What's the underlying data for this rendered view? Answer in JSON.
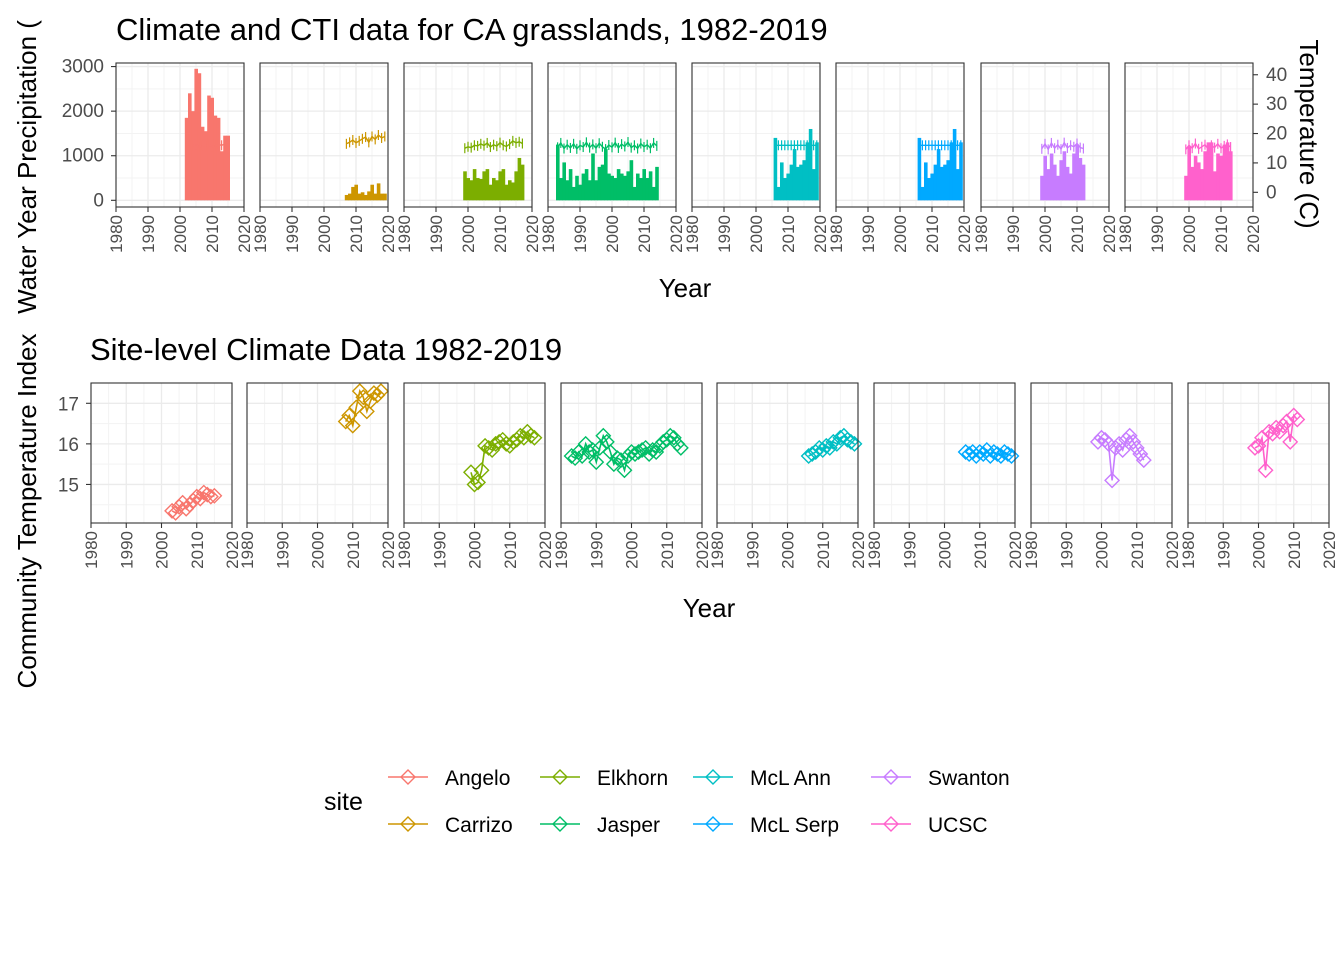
{
  "chart_data": [
    {
      "type": "bar",
      "title": "Climate and CTI data for CA grasslands, 1982-2019",
      "xlabel": "Year",
      "ylabel": "Water Year Precipitation (",
      "y2label": "Temperature (C)",
      "xlim": [
        1980,
        2020
      ],
      "ylim": [
        -150,
        3080
      ],
      "y2lim": [
        -5,
        44
      ],
      "xticks": [
        "1980",
        "1990",
        "2000",
        "2010",
        "2020"
      ],
      "yticks": [
        0,
        1000,
        2000,
        3000
      ],
      "y2ticks": [
        0,
        10,
        20,
        30,
        40
      ],
      "grid": true,
      "facets": [
        {
          "site": "Angelo",
          "color": "#F8766D",
          "x": [
            2002,
            2003,
            2004,
            2005,
            2006,
            2007,
            2008,
            2009,
            2010,
            2011,
            2012,
            2013,
            2014,
            2015
          ],
          "precip": [
            1850,
            2400,
            2000,
            2950,
            2850,
            1650,
            1550,
            2350,
            2300,
            1900,
            1850,
            1100,
            1450,
            1450
          ],
          "temp": [
            15.5,
            16.0,
            15.8,
            16.2,
            15.5,
            15.9,
            15.7,
            16.1,
            15.6,
            15.8,
            16.3,
            16.0,
            16.4,
            16.2
          ]
        },
        {
          "site": "Carrizo",
          "color": "#CD9600",
          "x": [
            2007,
            2008,
            2009,
            2010,
            2011,
            2012,
            2013,
            2014,
            2015,
            2016,
            2017,
            2018,
            2019
          ],
          "precip": [
            120,
            150,
            300,
            350,
            150,
            180,
            120,
            200,
            350,
            150,
            380,
            150,
            150
          ],
          "temp": [
            16.5,
            17.0,
            17.8,
            16.8,
            17.5,
            18.2,
            18.8,
            17.0,
            19.0,
            18.0,
            19.5,
            18.5,
            19.0
          ]
        },
        {
          "site": "Elkhorn",
          "color": "#7CAE00",
          "x": [
            1999,
            2000,
            2001,
            2002,
            2003,
            2004,
            2005,
            2006,
            2007,
            2008,
            2009,
            2010,
            2011,
            2012,
            2013,
            2014,
            2015,
            2016,
            2017
          ],
          "precip": [
            650,
            500,
            450,
            700,
            500,
            480,
            650,
            700,
            350,
            500,
            450,
            650,
            700,
            350,
            450,
            400,
            650,
            950,
            800
          ],
          "temp": [
            15.0,
            15.5,
            15.2,
            16.0,
            15.8,
            16.5,
            15.9,
            16.8,
            15.4,
            16.2,
            15.7,
            16.9,
            16.0,
            15.6,
            16.4,
            17.5,
            16.8,
            17.2,
            16.6
          ]
        },
        {
          "site": "Jasper",
          "color": "#00BE67",
          "x": [
            1983,
            1984,
            1985,
            1986,
            1987,
            1988,
            1989,
            1990,
            1991,
            1992,
            1993,
            1994,
            1995,
            1996,
            1997,
            1998,
            1999,
            2000,
            2001,
            2002,
            2003,
            2004,
            2005,
            2006,
            2007,
            2008,
            2009,
            2010,
            2011,
            2012,
            2013,
            2014
          ],
          "precip": [
            1250,
            500,
            850,
            450,
            700,
            300,
            550,
            350,
            600,
            700,
            450,
            1050,
            450,
            750,
            800,
            1150,
            600,
            550,
            500,
            700,
            600,
            550,
            650,
            900,
            300,
            600,
            500,
            700,
            500,
            650,
            300,
            750
          ],
          "temp": [
            15.3,
            16.8,
            14.9,
            16.2,
            15.1,
            16.5,
            14.8,
            16.0,
            15.4,
            17.0,
            15.2,
            16.3,
            15.0,
            16.7,
            15.5,
            14.7,
            16.1,
            15.3,
            16.9,
            15.1,
            16.4,
            15.6,
            17.1,
            15.2,
            16.0,
            14.9,
            16.6,
            15.4,
            16.2,
            15.0,
            16.8,
            15.8
          ]
        },
        {
          "site": "McL Ann",
          "color": "#00BFC4",
          "x": [
            2006,
            2007,
            2008,
            2009,
            2010,
            2011,
            2012,
            2013,
            2014,
            2015,
            2016,
            2017,
            2018,
            2019
          ],
          "precip": [
            1400,
            300,
            850,
            500,
            600,
            800,
            1150,
            750,
            800,
            900,
            1300,
            1600,
            700,
            1300
          ],
          "temp": [
            16.0,
            16.0,
            16.0,
            16.0,
            16.0,
            16.0,
            16.0,
            16.0,
            16.0,
            16.0,
            16.0,
            16.0,
            16.0,
            16.0
          ]
        },
        {
          "site": "McL Serp",
          "color": "#00A9FF",
          "x": [
            2006,
            2007,
            2008,
            2009,
            2010,
            2011,
            2012,
            2013,
            2014,
            2015,
            2016,
            2017,
            2018,
            2019
          ],
          "precip": [
            1400,
            300,
            850,
            500,
            600,
            800,
            1150,
            750,
            800,
            900,
            1300,
            1600,
            700,
            1300
          ],
          "temp": [
            16.0,
            16.0,
            16.0,
            16.0,
            16.0,
            16.0,
            16.0,
            16.0,
            16.0,
            16.0,
            16.0,
            16.0,
            16.0,
            16.0
          ]
        },
        {
          "site": "Swanton",
          "color": "#C77CFF",
          "x": [
            1999,
            2000,
            2001,
            2002,
            2003,
            2004,
            2005,
            2006,
            2007,
            2008,
            2009,
            2010,
            2011,
            2012
          ],
          "precip": [
            550,
            1000,
            700,
            1050,
            800,
            550,
            900,
            1100,
            750,
            600,
            1050,
            1250,
            950,
            800
          ],
          "temp": [
            14.8,
            16.5,
            14.6,
            16.8,
            15.0,
            16.2,
            14.7,
            16.9,
            15.1,
            16.0,
            15.5,
            16.6,
            15.2,
            14.9
          ]
        },
        {
          "site": "UCSC",
          "color": "#FF61CC",
          "x": [
            1999,
            2000,
            2001,
            2002,
            2003,
            2004,
            2005,
            2006,
            2007,
            2008,
            2009,
            2010,
            2011,
            2012,
            2013
          ],
          "precip": [
            550,
            1200,
            750,
            1000,
            850,
            700,
            1100,
            1300,
            1300,
            650,
            1050,
            1000,
            1250,
            1300,
            1100
          ],
          "temp": [
            14.6,
            16.0,
            15.0,
            16.6,
            14.8,
            15.5,
            16.2,
            14.7,
            16.0,
            15.2,
            16.5,
            15.0,
            15.8,
            16.3,
            15.4
          ]
        }
      ]
    },
    {
      "type": "line",
      "title": "Site-level Climate Data 1982-2019",
      "xlabel": "Year",
      "ylabel": "Community Temperature Index",
      "xlim": [
        1980,
        2020
      ],
      "ylim": [
        14.05,
        17.5
      ],
      "xticks": [
        "1980",
        "1990",
        "2000",
        "2010",
        "2020"
      ],
      "yticks": [
        15,
        16,
        17
      ],
      "grid": true,
      "marker": "open-diamond",
      "series": [
        {
          "name": "Angelo",
          "color": "#F8766D",
          "x": [
            2003,
            2004,
            2005,
            2006,
            2007,
            2008,
            2009,
            2010,
            2011,
            2012,
            2013,
            2014,
            2015
          ],
          "y": [
            14.35,
            14.3,
            14.45,
            14.55,
            14.4,
            14.5,
            14.6,
            14.7,
            14.65,
            14.8,
            14.75,
            14.7,
            14.72
          ]
        },
        {
          "name": "Carrizo",
          "color": "#CD9600",
          "x": [
            2008,
            2009,
            2010,
            2011,
            2012,
            2013,
            2014,
            2015,
            2016,
            2017,
            2018
          ],
          "y": [
            16.55,
            16.7,
            16.45,
            16.9,
            17.3,
            17.15,
            16.8,
            17.05,
            17.25,
            17.2,
            17.3
          ]
        },
        {
          "name": "Elkhorn",
          "color": "#7CAE00",
          "x": [
            1999,
            2000,
            2001,
            2002,
            2003,
            2004,
            2005,
            2006,
            2007,
            2008,
            2009,
            2010,
            2011,
            2012,
            2013,
            2014,
            2015,
            2016,
            2017
          ],
          "y": [
            15.3,
            15.0,
            15.05,
            15.35,
            15.95,
            15.9,
            15.85,
            16.0,
            16.05,
            16.1,
            16.0,
            15.95,
            16.05,
            16.1,
            16.2,
            16.15,
            16.3,
            16.2,
            16.15
          ]
        },
        {
          "name": "Jasper",
          "color": "#00BE67",
          "x": [
            1983,
            1984,
            1985,
            1986,
            1987,
            1988,
            1989,
            1990,
            1991,
            1992,
            1993,
            1994,
            1995,
            1996,
            1997,
            1998,
            1999,
            2000,
            2001,
            2002,
            2003,
            2004,
            2005,
            2006,
            2007,
            2008,
            2009,
            2010,
            2011,
            2012,
            2013,
            2014
          ],
          "y": [
            15.7,
            15.65,
            15.8,
            15.7,
            16.0,
            15.8,
            15.85,
            15.55,
            15.9,
            16.2,
            16.05,
            15.8,
            15.5,
            15.65,
            15.6,
            15.35,
            15.7,
            15.8,
            15.75,
            15.8,
            15.85,
            15.9,
            15.75,
            15.85,
            15.8,
            15.95,
            16.05,
            16.1,
            16.2,
            16.15,
            16.0,
            15.9
          ]
        },
        {
          "name": "McL Ann",
          "color": "#00BFC4",
          "x": [
            2006,
            2007,
            2008,
            2009,
            2010,
            2011,
            2012,
            2013,
            2014,
            2015,
            2016,
            2017,
            2018,
            2019
          ],
          "y": [
            15.7,
            15.75,
            15.8,
            15.9,
            15.85,
            15.95,
            15.9,
            16.05,
            16.0,
            16.15,
            16.2,
            16.1,
            16.05,
            16.0
          ]
        },
        {
          "name": "McL Serp",
          "color": "#00A9FF",
          "x": [
            2006,
            2007,
            2008,
            2009,
            2010,
            2011,
            2012,
            2013,
            2014,
            2015,
            2016,
            2017,
            2018,
            2019
          ],
          "y": [
            15.8,
            15.75,
            15.8,
            15.7,
            15.8,
            15.75,
            15.85,
            15.7,
            15.8,
            15.75,
            15.7,
            15.8,
            15.75,
            15.7
          ]
        },
        {
          "name": "Swanton",
          "color": "#C77CFF",
          "x": [
            1999,
            2000,
            2001,
            2002,
            2003,
            2004,
            2005,
            2006,
            2007,
            2008,
            2009,
            2010,
            2011,
            2012
          ],
          "y": [
            16.05,
            16.15,
            16.1,
            16.0,
            15.1,
            15.9,
            16.0,
            15.85,
            16.1,
            16.2,
            16.05,
            15.9,
            15.75,
            15.6
          ]
        },
        {
          "name": "UCSC",
          "color": "#FF61CC",
          "x": [
            1999,
            2000,
            2001,
            2002,
            2003,
            2004,
            2005,
            2006,
            2007,
            2008,
            2009,
            2010,
            2011
          ],
          "y": [
            15.9,
            15.95,
            16.15,
            15.35,
            16.3,
            16.25,
            16.4,
            16.3,
            16.45,
            16.55,
            16.05,
            16.7,
            16.6
          ]
        }
      ]
    }
  ],
  "legend": {
    "title": "site",
    "items": [
      {
        "label": "Angelo",
        "color": "#F8766D"
      },
      {
        "label": "Carrizo",
        "color": "#CD9600"
      },
      {
        "label": "Elkhorn",
        "color": "#7CAE00"
      },
      {
        "label": "Jasper",
        "color": "#00BE67"
      },
      {
        "label": "McL Ann",
        "color": "#00BFC4"
      },
      {
        "label": "McL Serp",
        "color": "#00A9FF"
      },
      {
        "label": "Swanton",
        "color": "#C77CFF"
      },
      {
        "label": "UCSC",
        "color": "#FF61CC"
      }
    ]
  }
}
